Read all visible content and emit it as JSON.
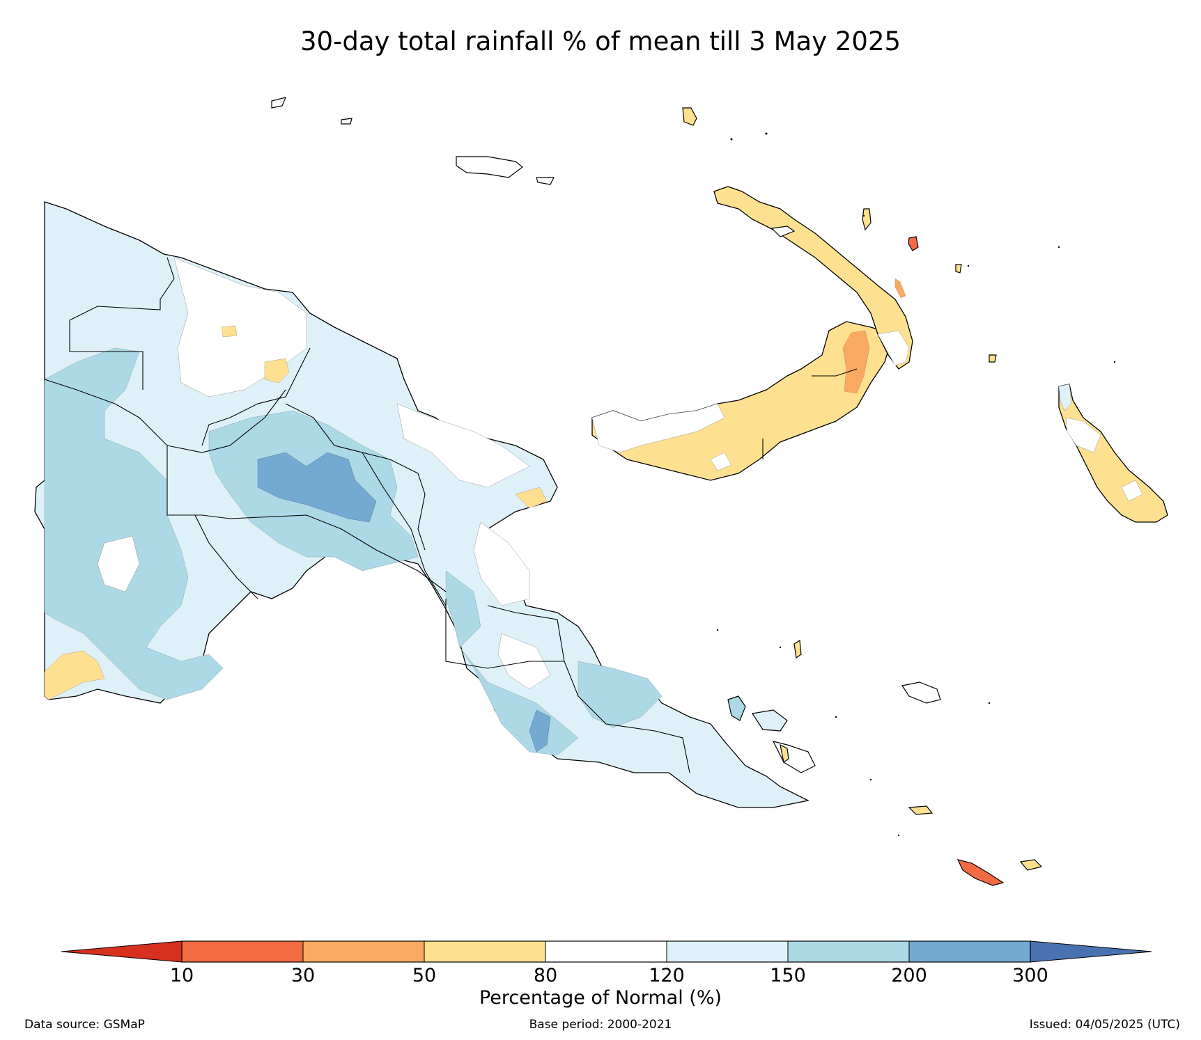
{
  "title": "30-day total rainfall % of mean till 3 May 2025",
  "colors": {
    "below_10": "#d7301f",
    "pct_10_30": "#f26b43",
    "pct_30_50": "#f8aa62",
    "pct_50_80": "#fde090",
    "pct_80_120": "#ffffff",
    "pct_120_150": "#dff1f8",
    "pct_150_200": "#add8e6",
    "pct_200_300": "#74aad2",
    "above_300": "#4a72b0"
  },
  "colorbar": {
    "ticks": [
      "10",
      "30",
      "50",
      "80",
      "120",
      "150",
      "200",
      "300"
    ],
    "label": "Percentage of Normal (%)"
  },
  "footer": {
    "source": "Data source: GSMaP",
    "base_period": "Base period: 2000-2021",
    "issued": "Issued: 04/05/2025 (UTC)"
  }
}
